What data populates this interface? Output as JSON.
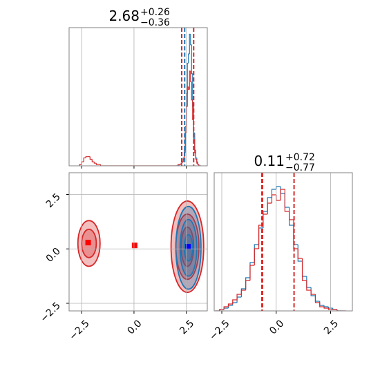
{
  "chart_data": [
    {
      "type": "histogram",
      "title": {
        "main": "2.68",
        "upper": "+0.26",
        "lower": "−0.36"
      },
      "xlim": [
        -3.1,
        3.5
      ],
      "ylim": [
        0,
        105
      ],
      "xgrid": [
        -2.5,
        0,
        2.5
      ],
      "series": [
        {
          "color": "#1f77b4",
          "bins": [
            2.0,
            2.05,
            2.1,
            2.15,
            2.2,
            2.25,
            2.3,
            2.35,
            2.4,
            2.45,
            2.5,
            2.55,
            2.6,
            2.65,
            2.7,
            2.75,
            2.8,
            2.85,
            2.9,
            2.95,
            3.0,
            3.05,
            3.1,
            3.15,
            3.2
          ],
          "values": [
            0,
            0,
            0,
            1,
            1,
            2,
            3,
            6,
            12,
            30,
            55,
            78,
            85,
            100,
            92,
            70,
            45,
            25,
            12,
            6,
            3,
            1,
            0,
            0
          ]
        },
        {
          "color": "#d62728",
          "bins": [
            -2.6,
            -2.5,
            -2.4,
            -2.3,
            -2.2,
            -2.1,
            -2.0,
            -1.9,
            -1.8,
            -1.7,
            -1.6,
            2.0,
            2.05,
            2.1,
            2.15,
            2.2,
            2.25,
            2.3,
            2.35,
            2.4,
            2.45,
            2.5,
            2.55,
            2.6,
            2.65,
            2.7,
            2.75,
            2.8,
            2.85,
            2.9,
            2.95,
            3.0,
            3.05,
            3.1,
            3.15,
            3.2
          ],
          "values": [
            1,
            3,
            6,
            7,
            7,
            5,
            3,
            2,
            1,
            1,
            0,
            0,
            0,
            1,
            1,
            1,
            2,
            3,
            5,
            10,
            25,
            45,
            60,
            58,
            72,
            64,
            50,
            35,
            20,
            10,
            5,
            2,
            1,
            0,
            0
          ]
        }
      ],
      "quantiles": [
        {
          "color": "#d62728",
          "values": [
            2.28,
            2.85
          ]
        },
        {
          "color": "#1f77b4",
          "values": [
            2.42
          ]
        }
      ]
    },
    {
      "type": "contour",
      "xlim": [
        -3.1,
        3.5
      ],
      "ylim": [
        -2.85,
        3.5
      ],
      "xticks": [
        {
          "value": -2.5,
          "label": "−2.5"
        },
        {
          "value": 0,
          "label": "0.0"
        },
        {
          "value": 2.5,
          "label": "2.5"
        }
      ],
      "yticks": [
        {
          "value": -2.5,
          "label": "−2.5"
        },
        {
          "value": 0,
          "label": "0.0"
        },
        {
          "value": 2.5,
          "label": "2.5"
        }
      ],
      "series": [
        {
          "color": "#d62728",
          "cx": [
            2.55,
            2.55,
            2.55,
            -2.15,
            -2.15
          ],
          "cy": [
            0.1,
            0.1,
            0.1,
            0.25,
            0.25
          ],
          "rx": [
            0.78,
            0.55,
            0.3,
            0.53,
            0.35
          ],
          "ry": [
            2.1,
            1.5,
            0.9,
            1.05,
            0.65
          ]
        },
        {
          "color": "#1f77b4",
          "cx": [
            2.6,
            2.6,
            2.6
          ],
          "cy": [
            0.05,
            0.05,
            0.05
          ],
          "rx": [
            0.6,
            0.4,
            0.2
          ],
          "ry": [
            1.9,
            1.3,
            0.6
          ]
        }
      ],
      "points": {
        "x": [
          -2.19,
          0.03,
          2.58
        ],
        "y": [
          0.29,
          0.16,
          0.1
        ],
        "colors": [
          "#ff0000",
          "#ff0000",
          "#0000ff"
        ]
      }
    },
    {
      "type": "histogram",
      "title": {
        "main": "0.11",
        "upper": "+0.72",
        "lower": "−0.77"
      },
      "xlim": [
        -2.85,
        3.5
      ],
      "ylim": [
        0,
        100
      ],
      "xticks": [
        {
          "value": -2.5,
          "label": "−2.5"
        },
        {
          "value": 0,
          "label": "0.0"
        },
        {
          "value": 2.5,
          "label": "2.5"
        }
      ],
      "series": [
        {
          "color": "#1f77b4",
          "bins": [
            -2.8,
            -2.6,
            -2.4,
            -2.2,
            -2.0,
            -1.8,
            -1.6,
            -1.4,
            -1.2,
            -1.0,
            -0.8,
            -0.6,
            -0.4,
            -0.2,
            0.0,
            0.2,
            0.4,
            0.6,
            0.8,
            1.0,
            1.2,
            1.4,
            1.6,
            1.8,
            2.0,
            2.2,
            2.4,
            2.6,
            2.8,
            3.0,
            3.2
          ],
          "values": [
            0,
            1,
            2,
            4,
            6,
            10,
            16,
            24,
            35,
            48,
            60,
            72,
            82,
            88,
            90,
            85,
            75,
            62,
            48,
            36,
            25,
            17,
            11,
            7,
            4,
            3,
            2,
            1,
            0,
            0
          ]
        },
        {
          "color": "#d62728",
          "bins": [
            -2.8,
            -2.6,
            -2.4,
            -2.2,
            -2.0,
            -1.8,
            -1.6,
            -1.4,
            -1.2,
            -1.0,
            -0.8,
            -0.6,
            -0.4,
            -0.2,
            0.0,
            0.2,
            0.4,
            0.6,
            0.8,
            1.0,
            1.2,
            1.4,
            1.6,
            1.8,
            2.0,
            2.2,
            2.4,
            2.6,
            2.8,
            3.0,
            3.2
          ],
          "values": [
            0,
            1,
            3,
            5,
            8,
            12,
            15,
            22,
            33,
            45,
            62,
            70,
            78,
            84,
            80,
            88,
            72,
            66,
            45,
            38,
            22,
            15,
            12,
            6,
            3,
            2,
            1,
            1,
            0,
            0
          ]
        }
      ],
      "quantiles": [
        {
          "color": "#1f77b4",
          "values": [
            -0.66
          ]
        },
        {
          "color": "#d62728",
          "values": [
            -0.63,
            0.82
          ]
        }
      ]
    }
  ]
}
